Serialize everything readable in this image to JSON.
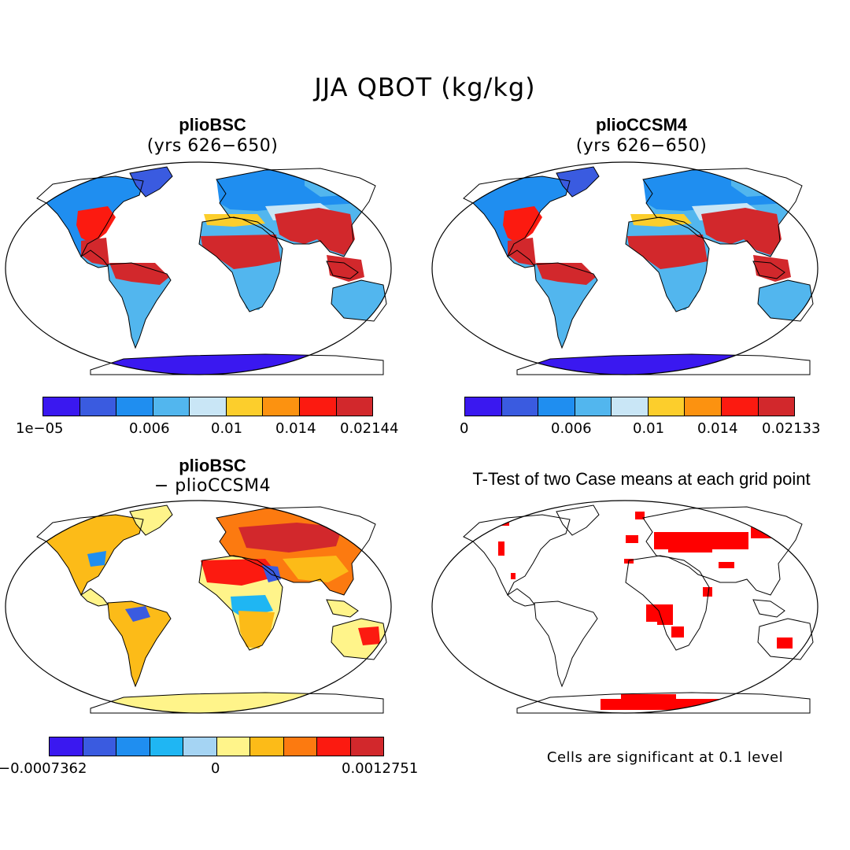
{
  "figure": {
    "title": "JJA QBOT (kg/kg)"
  },
  "palettes": {
    "abs": [
      "#3a18f0",
      "#3a5be0",
      "#1f8ef0",
      "#52b6ee",
      "#c9e6f6",
      "#fcce2c",
      "#fc9210",
      "#fc1a10",
      "#d2282c"
    ],
    "diff": [
      "#3a18f0",
      "#3a5be0",
      "#1f8ef0",
      "#1fb6f3",
      "#a5d4f3",
      "#fff48a",
      "#fcbb18",
      "#fc7a10",
      "#fc1a10",
      "#d2282c"
    ],
    "sig": "#ff0000"
  },
  "panels": [
    {
      "id": "bsc",
      "title": "plioBSC",
      "subtitle": "(yrs 626−650)",
      "ticks": [
        "1e−05",
        "0.006",
        "0.01",
        "0.014",
        "0.02144"
      ]
    },
    {
      "id": "ccsm",
      "title": "plioCCSM4",
      "subtitle": "(yrs 626−650)",
      "ticks": [
        "0",
        "0.006",
        "0.01",
        "0.014",
        "0.02133"
      ]
    },
    {
      "id": "diff",
      "title": "plioBSC",
      "subtitle": "− plioCCSM4",
      "ticks": [
        "−0.0007362",
        "0",
        "0.0012751"
      ]
    },
    {
      "id": "ttest",
      "title": "T-Test of two Case means at each grid point",
      "note": "Cells are significant at 0.1 level"
    }
  ],
  "map_regions": {
    "abs": [
      {
        "name": "north-america",
        "level": 2
      },
      {
        "name": "greenland",
        "level": 1
      },
      {
        "name": "us-southeast",
        "level": 7
      },
      {
        "name": "central-america",
        "level": 8
      },
      {
        "name": "south-america",
        "level": 3
      },
      {
        "name": "amazon",
        "level": 8
      },
      {
        "name": "europe-russia",
        "level": 2
      },
      {
        "name": "siberia",
        "level": 3
      },
      {
        "name": "central-asia",
        "level": 4
      },
      {
        "name": "mediterranean",
        "level": 5
      },
      {
        "name": "sahel-africa",
        "level": 8
      },
      {
        "name": "southern-africa",
        "level": 3
      },
      {
        "name": "india-se-asia",
        "level": 8
      },
      {
        "name": "indonesia",
        "level": 8
      },
      {
        "name": "australia",
        "level": 3
      },
      {
        "name": "antarctica",
        "level": 0
      }
    ],
    "diff": [
      {
        "name": "north-america",
        "level": 6
      },
      {
        "name": "us-east",
        "level": 2
      },
      {
        "name": "greenland",
        "level": 5
      },
      {
        "name": "south-america",
        "level": 6
      },
      {
        "name": "amazon-center",
        "level": 1
      },
      {
        "name": "eurasia",
        "level": 7
      },
      {
        "name": "russia-core",
        "level": 9
      },
      {
        "name": "north-africa",
        "level": 8
      },
      {
        "name": "arabia",
        "level": 1
      },
      {
        "name": "central-africa",
        "level": 3
      },
      {
        "name": "southern-africa",
        "level": 6
      },
      {
        "name": "india-china",
        "level": 6
      },
      {
        "name": "australia",
        "level": 5
      },
      {
        "name": "australia-east",
        "level": 8
      },
      {
        "name": "antarctica",
        "level": 5
      }
    ]
  }
}
